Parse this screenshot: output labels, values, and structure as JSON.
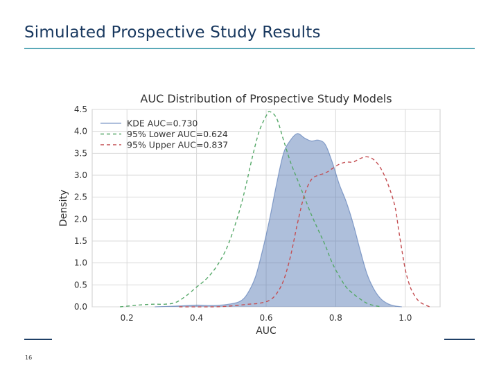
{
  "slide": {
    "title": "Simulated Prospective Study Results",
    "page_number": "16"
  },
  "colors": {
    "title": "#17375e",
    "title_rule": "#5aa9b8",
    "kde": "#4c72b0",
    "lower": "#55a868",
    "upper": "#c44e52",
    "plot_bg": "#ffffff",
    "grid": "#d9d9d9"
  },
  "chart_data": {
    "type": "area",
    "title": "AUC Distribution of Prospective Study Models",
    "xlabel": "AUC",
    "ylabel": "Density",
    "xlim": [
      0.1,
      1.1
    ],
    "ylim": [
      0,
      4.5
    ],
    "xticks": [
      "0.2",
      "0.4",
      "0.6",
      "0.8",
      "1.0"
    ],
    "xtick_values": [
      0.2,
      0.4,
      0.6,
      0.8,
      1.0
    ],
    "yticks": [
      "0.0",
      "0.5",
      "1.0",
      "1.5",
      "2.0",
      "2.5",
      "3.0",
      "3.5",
      "4.0",
      "4.5"
    ],
    "ytick_values": [
      0,
      0.5,
      1.0,
      1.5,
      2.0,
      2.5,
      3.0,
      3.5,
      4.0,
      4.5
    ],
    "grid": true,
    "legend_position": "top-left",
    "series": [
      {
        "name": "KDE AUC=0.730",
        "style": "filled",
        "x": [
          0.28,
          0.35,
          0.4,
          0.45,
          0.5,
          0.53,
          0.55,
          0.57,
          0.59,
          0.61,
          0.63,
          0.65,
          0.67,
          0.69,
          0.71,
          0.73,
          0.75,
          0.77,
          0.79,
          0.81,
          0.83,
          0.85,
          0.87,
          0.89,
          0.91,
          0.93,
          0.95,
          0.97,
          0.99
        ],
        "y": [
          0.0,
          0.02,
          0.04,
          0.03,
          0.07,
          0.15,
          0.35,
          0.7,
          1.3,
          2.0,
          2.8,
          3.5,
          3.8,
          3.95,
          3.85,
          3.78,
          3.8,
          3.7,
          3.3,
          2.8,
          2.4,
          1.9,
          1.3,
          0.75,
          0.4,
          0.18,
          0.07,
          0.02,
          0.0
        ]
      },
      {
        "name": "95% Lower AUC=0.624",
        "style": "dashed",
        "x": [
          0.18,
          0.22,
          0.25,
          0.28,
          0.31,
          0.34,
          0.37,
          0.4,
          0.43,
          0.46,
          0.49,
          0.52,
          0.54,
          0.56,
          0.58,
          0.6,
          0.61,
          0.63,
          0.65,
          0.67,
          0.69,
          0.71,
          0.73,
          0.75,
          0.77,
          0.79,
          0.81,
          0.83,
          0.85,
          0.87,
          0.89,
          0.91,
          0.93
        ],
        "y": [
          0.0,
          0.03,
          0.05,
          0.06,
          0.06,
          0.1,
          0.25,
          0.45,
          0.65,
          0.95,
          1.4,
          2.1,
          2.7,
          3.4,
          4.0,
          4.35,
          4.45,
          4.3,
          3.8,
          3.3,
          2.9,
          2.5,
          2.1,
          1.75,
          1.4,
          1.0,
          0.7,
          0.45,
          0.3,
          0.18,
          0.08,
          0.03,
          0.0
        ]
      },
      {
        "name": "95% Upper AUC=0.837",
        "style": "dashed",
        "x": [
          0.35,
          0.45,
          0.5,
          0.55,
          0.58,
          0.61,
          0.63,
          0.65,
          0.67,
          0.69,
          0.71,
          0.73,
          0.75,
          0.77,
          0.79,
          0.81,
          0.83,
          0.85,
          0.87,
          0.89,
          0.91,
          0.93,
          0.95,
          0.97,
          0.98,
          0.99,
          1.0,
          1.01,
          1.02,
          1.04,
          1.07
        ],
        "y": [
          0.0,
          0.0,
          0.02,
          0.06,
          0.08,
          0.15,
          0.3,
          0.6,
          1.15,
          1.9,
          2.55,
          2.9,
          3.0,
          3.05,
          3.15,
          3.25,
          3.3,
          3.3,
          3.38,
          3.42,
          3.35,
          3.15,
          2.8,
          2.3,
          1.8,
          1.3,
          0.85,
          0.55,
          0.35,
          0.12,
          0.0
        ]
      }
    ]
  }
}
